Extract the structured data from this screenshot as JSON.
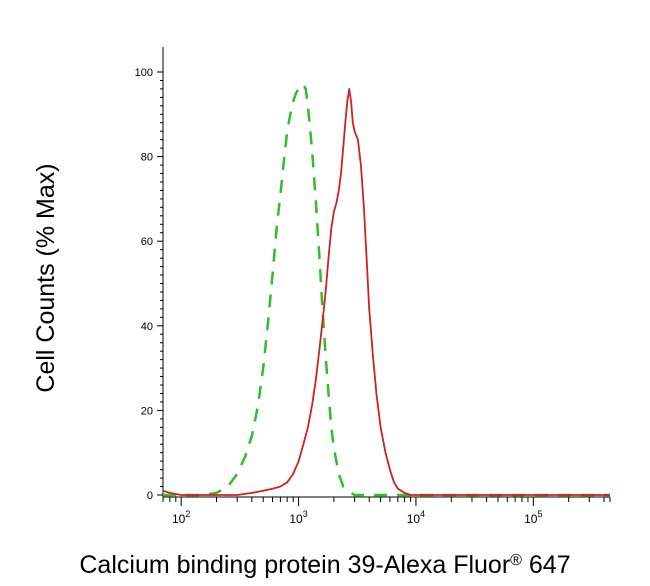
{
  "chart_data": {
    "type": "line",
    "title": "",
    "xlabel": "Calcium binding protein 39-Alexa Fluor® 647",
    "ylabel": "Cell Counts (% Max)",
    "xscale": "log",
    "xlim": [
      70,
      450000
    ],
    "ylim": [
      0,
      100
    ],
    "grid": false,
    "legend": "none",
    "x_ticks": [
      {
        "value": 100,
        "base": "10",
        "exp": "2"
      },
      {
        "value": 1000,
        "base": "10",
        "exp": "3"
      },
      {
        "value": 10000,
        "base": "10",
        "exp": "4"
      },
      {
        "value": 100000,
        "base": "10",
        "exp": "5"
      }
    ],
    "y_ticks": [
      {
        "value": 0,
        "label": "0"
      },
      {
        "value": 20,
        "label": "20"
      },
      {
        "value": 40,
        "label": "40"
      },
      {
        "value": 60,
        "label": "60"
      },
      {
        "value": 80,
        "label": "80"
      },
      {
        "value": 100,
        "label": "100"
      }
    ],
    "series": [
      {
        "style": "dashed",
        "color": "#33bb33",
        "x": [
          70,
          150,
          200,
          250,
          300,
          350,
          400,
          450,
          500,
          550,
          600,
          650,
          700,
          750,
          800,
          850,
          900,
          950,
          1000,
          1050,
          1100,
          1150,
          1200,
          1300,
          1400,
          1500,
          1600,
          1700,
          1800,
          1900,
          2000,
          2200,
          2400,
          2600,
          3000,
          4000,
          10000,
          100000,
          450000
        ],
        "y": [
          0,
          0,
          0.5,
          2,
          5,
          9,
          14,
          21,
          30,
          41,
          52,
          63,
          71,
          79,
          86,
          90,
          93,
          95,
          96,
          97,
          97,
          96,
          92,
          82,
          70,
          57,
          44,
          33,
          24,
          16,
          11,
          5,
          2,
          1,
          0,
          0,
          0,
          0,
          0
        ]
      },
      {
        "style": "solid",
        "color": "#cc2222",
        "x": [
          70,
          80,
          100,
          300,
          400,
          500,
          600,
          700,
          800,
          900,
          1000,
          1100,
          1200,
          1300,
          1400,
          1500,
          1600,
          1700,
          1800,
          1900,
          2000,
          2100,
          2200,
          2300,
          2400,
          2500,
          2600,
          2700,
          2800,
          2900,
          3000,
          3200,
          3400,
          3600,
          3800,
          4000,
          4300,
          4600,
          5000,
          5500,
          6000,
          6500,
          7000,
          8000,
          9000,
          10000,
          100000,
          450000
        ],
        "y": [
          1,
          0.5,
          0,
          0,
          0.5,
          1,
          1.5,
          2,
          3,
          5,
          8,
          12,
          16,
          21,
          27,
          34,
          41,
          48,
          56,
          63,
          67,
          69,
          72,
          76,
          82,
          88,
          93,
          96,
          93,
          88,
          86,
          84,
          78,
          68,
          56,
          44,
          33,
          24,
          16,
          10,
          6,
          3,
          1.5,
          0.5,
          0,
          0,
          0,
          0
        ]
      }
    ]
  }
}
